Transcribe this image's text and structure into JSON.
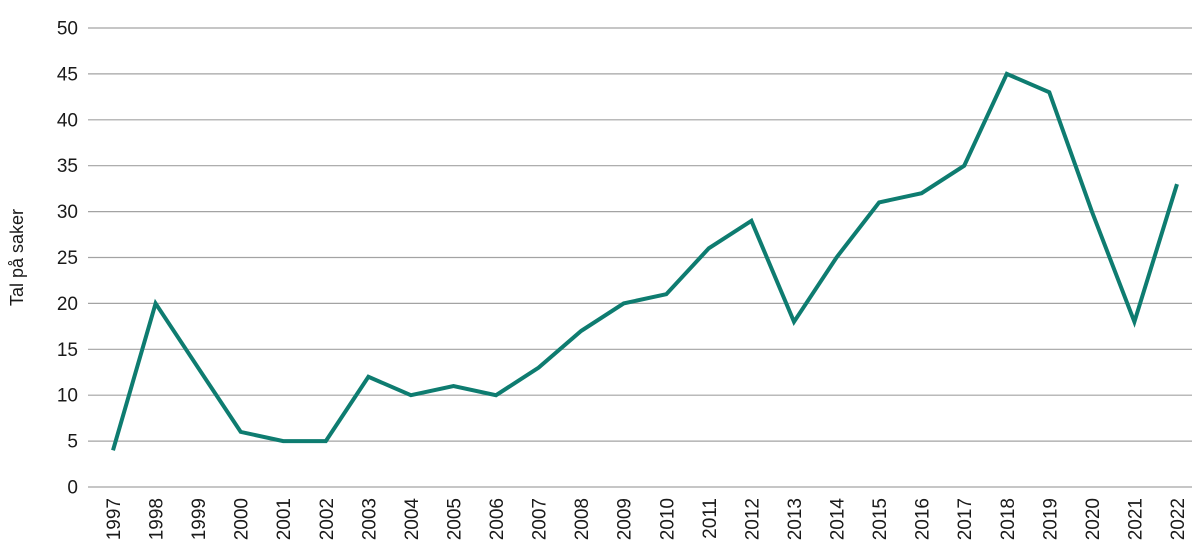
{
  "chart_data": {
    "type": "line",
    "title": "",
    "xlabel": "",
    "ylabel": "Tal på saker",
    "categories": [
      "1997",
      "1998",
      "1999",
      "2000",
      "2001",
      "2002",
      "2003",
      "2004",
      "2005",
      "2006",
      "2007",
      "2008",
      "2009",
      "2010",
      "2011",
      "2012",
      "2013",
      "2014",
      "2015",
      "2016",
      "2017",
      "2018",
      "2019",
      "2020",
      "2021",
      "2022"
    ],
    "series": [
      {
        "name": "Tal på saker",
        "values": [
          4,
          20,
          13,
          6,
          5,
          5,
          12,
          10,
          11,
          10,
          13,
          17,
          20,
          21,
          26,
          29,
          18,
          25,
          31,
          32,
          35,
          45,
          43,
          30,
          18,
          33
        ]
      }
    ],
    "ylim": [
      0,
      50
    ],
    "ytick_step": 5,
    "yticks": [
      0,
      5,
      10,
      15,
      20,
      25,
      30,
      35,
      40,
      45,
      50
    ],
    "grid": "horizontal",
    "legend": "none",
    "x_tick_label_rotation_deg": -90,
    "colors": {
      "line": "#0E7C70",
      "grid": "#a3a3a3",
      "text": "#1a1a1a",
      "background": "#ffffff"
    }
  }
}
